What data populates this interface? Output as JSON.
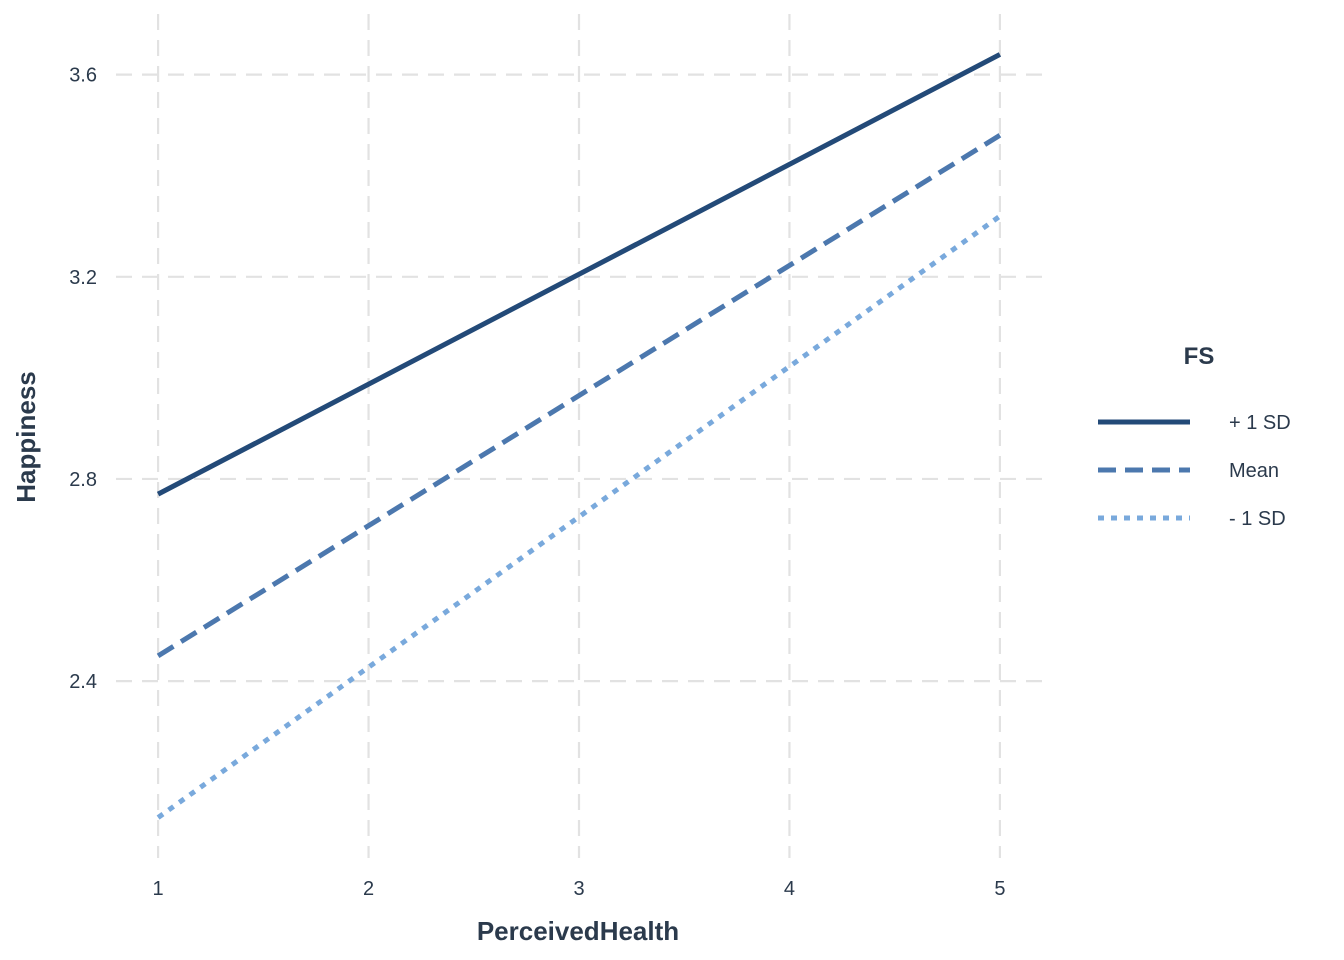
{
  "chart_data": {
    "type": "line",
    "xlabel": "PerceivedHealth",
    "ylabel": "Happiness",
    "x": [
      1,
      5
    ],
    "x_ticks": [
      "1",
      "2",
      "3",
      "4",
      "5"
    ],
    "y_ticks": [
      "2.4",
      "2.8",
      "3.2",
      "3.6"
    ],
    "xlim": [
      0.8,
      5.2
    ],
    "ylim": [
      2.05,
      3.72
    ],
    "grid": true,
    "legend": {
      "title": "FS",
      "placement": "right"
    },
    "series": [
      {
        "name": "+ 1 SD",
        "values": [
          2.77,
          3.64
        ],
        "color": "#234a78",
        "style": "solid"
      },
      {
        "name": "Mean",
        "values": [
          2.45,
          3.48
        ],
        "color": "#4c78ae",
        "style": "dashed"
      },
      {
        "name": "- 1 SD",
        "values": [
          2.13,
          3.32
        ],
        "color": "#79a9dc",
        "style": "dotted"
      }
    ]
  }
}
